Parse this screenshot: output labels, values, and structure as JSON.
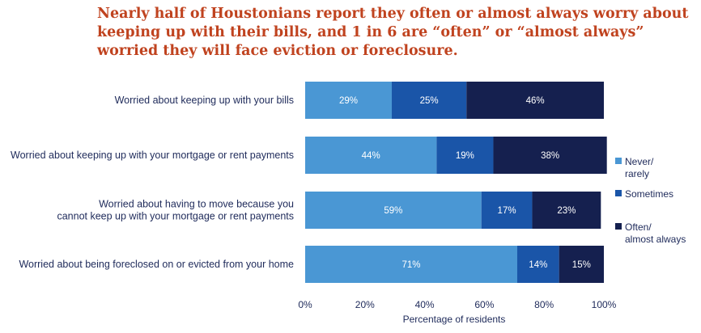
{
  "chart_data": {
    "type": "bar",
    "orientation": "horizontal",
    "stacked": true,
    "title": "Nearly half of Houstonians report they often or almost always worry about keeping up with their bills, and 1 in 6 are “often” or “almost always” worried they will face eviction or foreclosure.",
    "xlabel": "Percentage of residents",
    "ylabel": "",
    "xlim": [
      0,
      100
    ],
    "x_ticks": [
      "0%",
      "20%",
      "40%",
      "60%",
      "80%",
      "100%"
    ],
    "categories": [
      [
        "Worried about keeping up with your bills"
      ],
      [
        "Worried about keeping up with your mortgage or rent payments"
      ],
      [
        "Worried about having to move because you",
        "cannot keep up with your mortgage or rent payments"
      ],
      [
        "Worried about being foreclosed on or evicted from your home"
      ]
    ],
    "series": [
      {
        "name": [
          "Never/",
          "rarely"
        ],
        "color": "#4a97d4",
        "values": [
          29,
          44,
          59,
          71
        ],
        "labels": [
          "29%",
          "44%",
          "59%",
          "71%"
        ]
      },
      {
        "name": [
          "Sometimes"
        ],
        "color": "#1a55a8",
        "values": [
          25,
          19,
          17,
          14
        ],
        "labels": [
          "25%",
          "19%",
          "17%",
          "14%"
        ]
      },
      {
        "name": [
          "Often/",
          "almost always"
        ],
        "color": "#15204f",
        "values": [
          46,
          38,
          23,
          15
        ],
        "labels": [
          "46%",
          "38%",
          "23%",
          "15%"
        ]
      }
    ],
    "grid": false,
    "legend": "right"
  }
}
